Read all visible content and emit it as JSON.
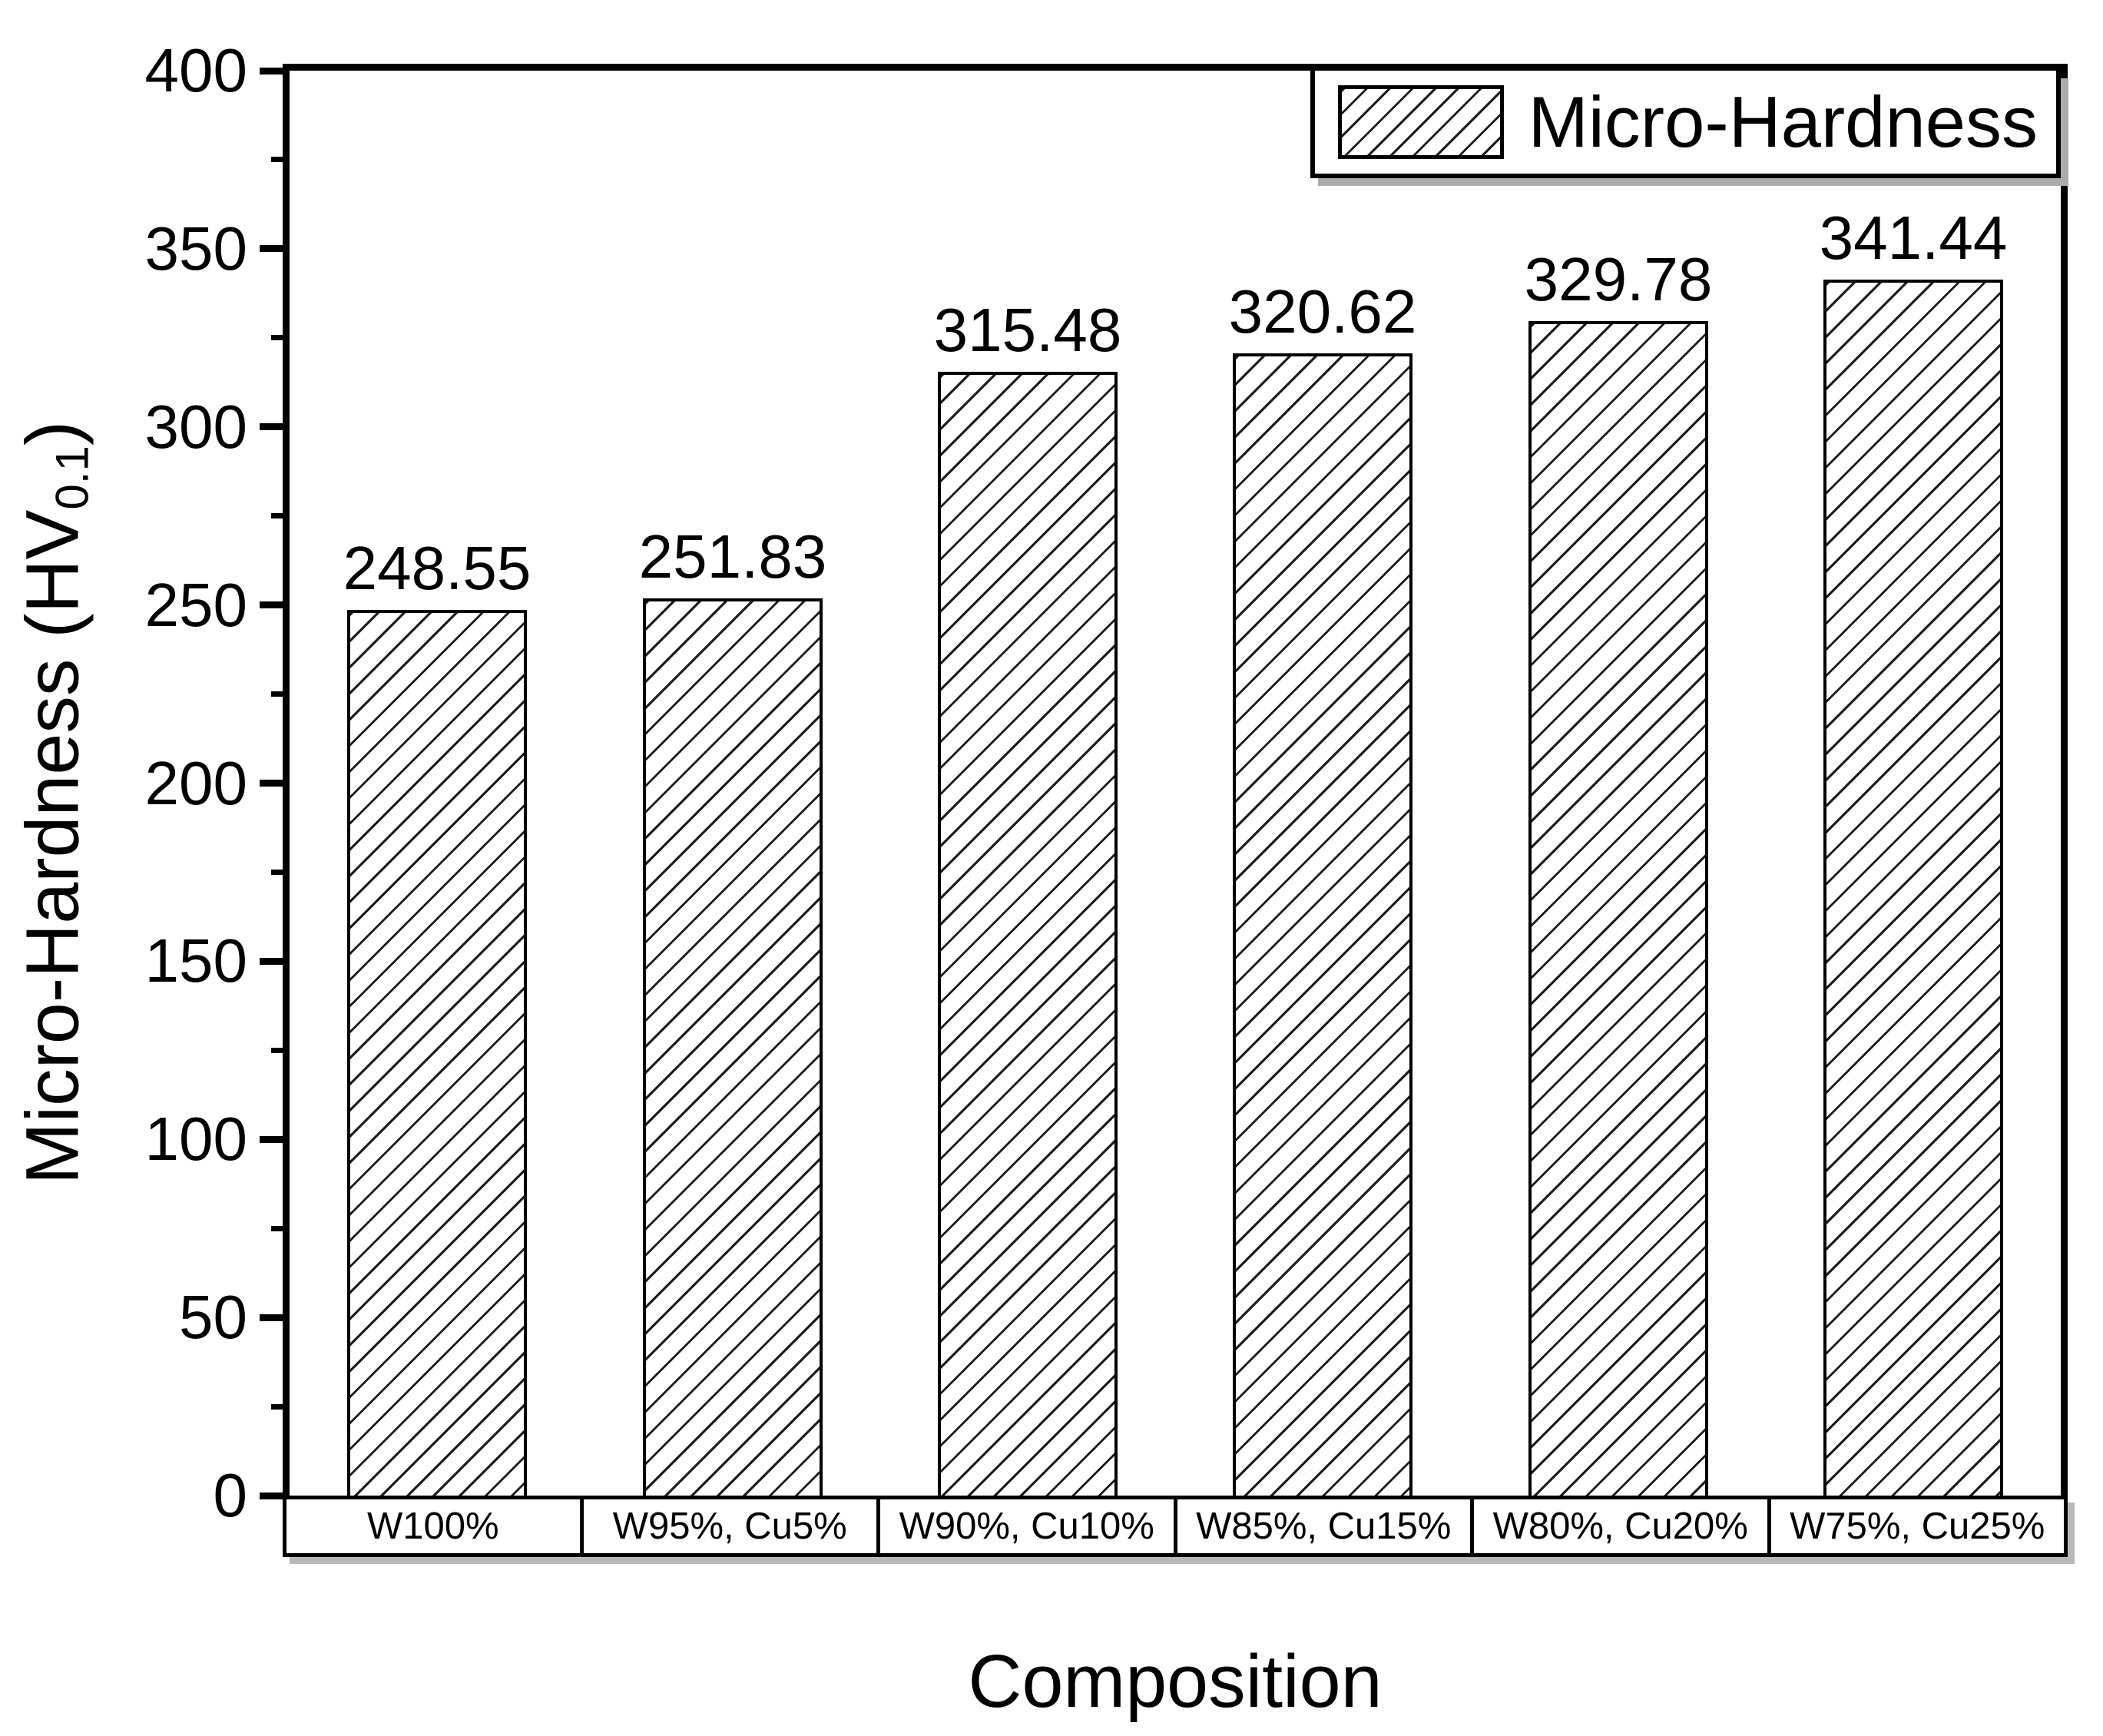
{
  "figure": {
    "background": "#ffffff",
    "frame_color": "#000000",
    "shadow_color": "#ababab"
  },
  "chart_data": {
    "type": "bar",
    "title": "",
    "categories": [
      "W100%",
      "W95%, Cu5%",
      "W90%, Cu10%",
      "W85%, Cu15%",
      "W80%, Cu20%",
      "W75%, Cu25%"
    ],
    "values": [
      248.55,
      251.83,
      315.48,
      320.62,
      329.78,
      341.44
    ],
    "value_labels": [
      "248.55",
      "251.83",
      "315.48",
      "320.62",
      "329.78",
      "341.44"
    ],
    "series_name": "Micro-Hardness",
    "xlabel": "Composition",
    "ylabel": {
      "main": "Micro-Hardness (HV",
      "sub": "0.1",
      "end": ")"
    },
    "ylim": [
      0,
      400
    ],
    "yticks": [
      0,
      50,
      100,
      150,
      200,
      250,
      300,
      350,
      400
    ],
    "ytick_step": 50,
    "yminor_step": 25,
    "grid": false,
    "legend": {
      "label": "Micro-Hardness",
      "position": "top-right",
      "swatch": "diagonal-hatch"
    },
    "bar_fill": "#ffffff",
    "hatch_color": "#1c1c1c",
    "bar_border_color": "#000000"
  }
}
